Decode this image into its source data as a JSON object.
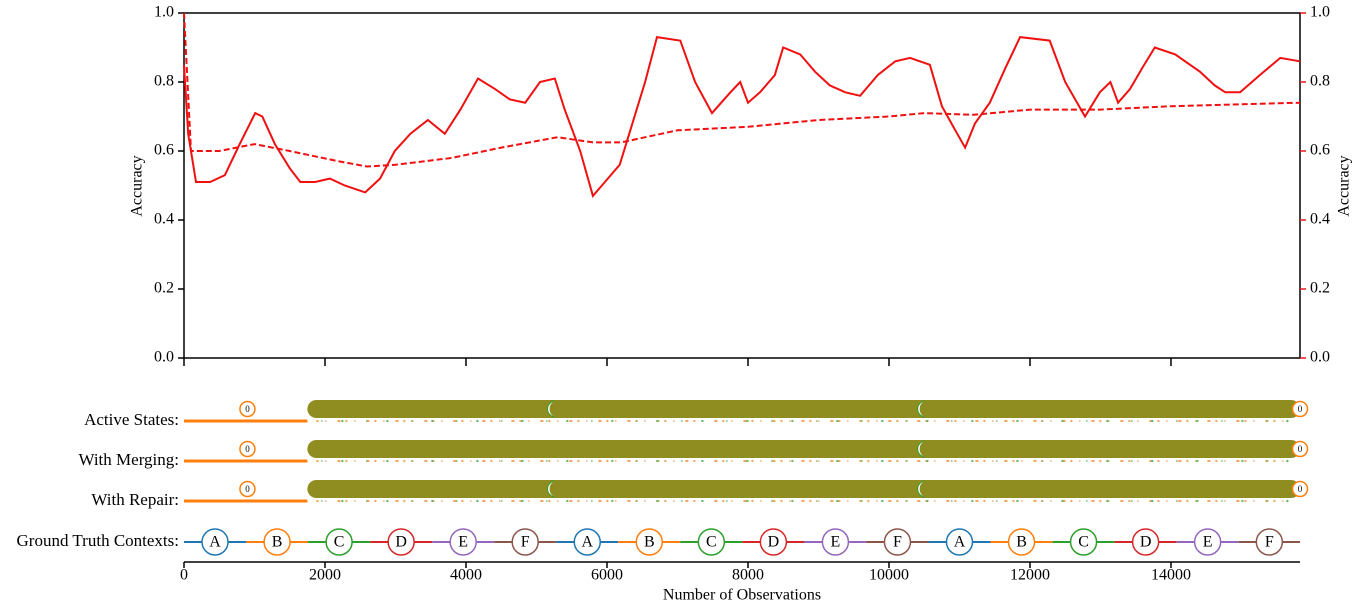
{
  "chart_data": [
    {
      "type": "line",
      "ylabel": "Accuracy",
      "y2label": "Accuracy",
      "y2color": "#e8191a",
      "xlim": [
        0,
        15830
      ],
      "ylim": [
        0,
        1
      ],
      "y2lim": [
        0,
        1
      ],
      "yticks": [
        {
          "value": 0,
          "label": "0.0"
        },
        {
          "value": 0.2,
          "label": "0.2"
        },
        {
          "value": 0.4,
          "label": "0.4"
        },
        {
          "value": 0.6,
          "label": "0.6"
        },
        {
          "value": 0.8,
          "label": "0.8"
        },
        {
          "value": 1,
          "label": "1.0"
        }
      ],
      "y2ticks": [
        {
          "value": 0,
          "label": "0.0"
        },
        {
          "value": 0.2,
          "label": "0.2"
        },
        {
          "value": 0.4,
          "label": "0.4"
        },
        {
          "value": 0.6,
          "label": "0.6"
        },
        {
          "value": 0.8,
          "label": "0.8"
        },
        {
          "value": 1,
          "label": "1.0"
        }
      ],
      "series": [
        {
          "color": "#f01010",
          "dashed": false,
          "x": [
            0,
            60,
            170,
            370,
            580,
            790,
            1010,
            1110,
            1290,
            1500,
            1650,
            1860,
            2070,
            2280,
            2570,
            2780,
            2990,
            3210,
            3460,
            3700,
            3920,
            4170,
            4410,
            4620,
            4840,
            5050,
            5260,
            5400,
            5620,
            5800,
            5970,
            6180,
            6330,
            6540,
            6710,
            7040,
            7250,
            7490,
            7750,
            7890,
            8000,
            8170,
            8380,
            8500,
            8740,
            8950,
            9160,
            9380,
            9590,
            9840,
            10090,
            10300,
            10580,
            10750,
            10940,
            11080,
            11220,
            11430,
            11650,
            11860,
            12280,
            12500,
            12780,
            12990,
            13140,
            13250,
            13420,
            13590,
            13770,
            14060,
            14410,
            14620,
            14770,
            14980,
            15260,
            15550,
            15830
          ],
          "values": [
            0.85,
            0.65,
            0.51,
            0.51,
            0.53,
            0.62,
            0.71,
            0.7,
            0.62,
            0.55,
            0.51,
            0.51,
            0.52,
            0.5,
            0.48,
            0.52,
            0.6,
            0.65,
            0.69,
            0.65,
            0.72,
            0.81,
            0.78,
            0.75,
            0.74,
            0.8,
            0.81,
            0.72,
            0.6,
            0.47,
            0.51,
            0.56,
            0.66,
            0.8,
            0.93,
            0.92,
            0.8,
            0.71,
            0.77,
            0.8,
            0.74,
            0.77,
            0.82,
            0.9,
            0.88,
            0.83,
            0.79,
            0.77,
            0.76,
            0.82,
            0.86,
            0.87,
            0.85,
            0.73,
            0.66,
            0.61,
            0.68,
            0.74,
            0.84,
            0.93,
            0.92,
            0.8,
            0.7,
            0.77,
            0.8,
            0.74,
            0.78,
            0.84,
            0.9,
            0.88,
            0.83,
            0.79,
            0.77,
            0.77,
            0.82,
            0.87,
            0.86
          ]
        },
        {
          "color": "#f01010",
          "dashed": true,
          "x": [
            0,
            100,
            500,
            1000,
            1500,
            2200,
            2600,
            3000,
            3800,
            4500,
            5300,
            5800,
            6200,
            7000,
            8000,
            9000,
            10000,
            10500,
            11200,
            12000,
            13000,
            14000,
            15830
          ],
          "values": [
            1.0,
            0.6,
            0.6,
            0.62,
            0.6,
            0.57,
            0.555,
            0.56,
            0.58,
            0.61,
            0.64,
            0.625,
            0.625,
            0.66,
            0.67,
            0.69,
            0.7,
            0.71,
            0.705,
            0.72,
            0.72,
            0.73,
            0.74
          ]
        }
      ]
    },
    {
      "type": "timeline",
      "xlabel": "Number of Observations",
      "xlim": [
        0,
        15830
      ],
      "xticks": [
        0,
        2000,
        4000,
        6000,
        8000,
        10000,
        12000,
        14000
      ],
      "rows": [
        {
          "label": "Active States:",
          "segments": [
            {
              "start": 0,
              "end": 1750,
              "color": "#ff7f0e",
              "kind": "line"
            },
            {
              "start": 1750,
              "end": 15830,
              "color": "#8f8d1f",
              "kind": "band"
            }
          ],
          "breaks": [
            5270,
            10520
          ],
          "markers": [
            {
              "x": 900,
              "label": "0"
            },
            {
              "x": 15830,
              "label": "0"
            }
          ]
        },
        {
          "label": "With Merging:",
          "segments": [
            {
              "start": 0,
              "end": 1750,
              "color": "#ff7f0e",
              "kind": "line"
            },
            {
              "start": 1750,
              "end": 15830,
              "color": "#8f8d1f",
              "kind": "band"
            }
          ],
          "breaks": [
            10520
          ],
          "markers": [
            {
              "x": 900,
              "label": "0"
            },
            {
              "x": 15830,
              "label": "0"
            }
          ]
        },
        {
          "label": "With Repair:",
          "segments": [
            {
              "start": 0,
              "end": 1750,
              "color": "#ff7f0e",
              "kind": "line"
            },
            {
              "start": 1750,
              "end": 15830,
              "color": "#8f8d1f",
              "kind": "band"
            }
          ],
          "breaks": [
            5270,
            10520
          ],
          "markers": [
            {
              "x": 900,
              "label": "0"
            },
            {
              "x": 15830,
              "label": "0"
            }
          ]
        }
      ],
      "contexts_label": "Ground Truth Contexts:",
      "context_colors": {
        "A": "#1f77b4",
        "B": "#ff7f0e",
        "C": "#2ca02c",
        "D": "#d62728",
        "E": "#9467bd",
        "F": "#8c564b"
      },
      "contexts": [
        "A",
        "B",
        "C",
        "D",
        "E",
        "F",
        "A",
        "B",
        "C",
        "D",
        "E",
        "F",
        "A",
        "B",
        "C",
        "D",
        "E",
        "F"
      ],
      "context_starts": [
        0,
        880,
        1760,
        2640,
        3520,
        4400,
        5280,
        6160,
        7040,
        7920,
        8800,
        9680,
        10560,
        11440,
        12320,
        13200,
        14080,
        14960
      ],
      "context_end": 15830
    }
  ]
}
